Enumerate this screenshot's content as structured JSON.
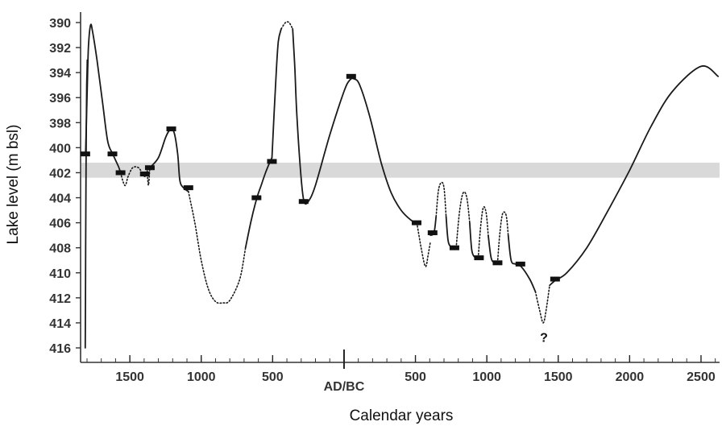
{
  "chart_data": {
    "type": "line",
    "xlabel": "Calendar years",
    "ylabel": "Lake level (m bsl)",
    "x_ticks": [
      {
        "label": "1500",
        "year": -1500
      },
      {
        "label": "1000",
        "year": -1000
      },
      {
        "label": "500",
        "year": -500
      },
      {
        "label": "AD/BC",
        "year": 0
      },
      {
        "label": "500",
        "year": 500
      },
      {
        "label": "1000",
        "year": 1000
      },
      {
        "label": "1500",
        "year": 1500
      },
      {
        "label": "2000",
        "year": 2000
      },
      {
        "label": "2500",
        "year": 2500
      }
    ],
    "xlim": [
      -1845,
      2630
    ],
    "ylim": [
      390,
      416
    ],
    "y_inverted": true,
    "y_ticks": [
      390,
      392,
      394,
      396,
      398,
      400,
      402,
      404,
      406,
      408,
      410,
      412,
      414,
      416
    ],
    "band": {
      "y_from": 401.2,
      "y_to": 402.4,
      "color": "#d9d9d9"
    },
    "line_color": "#1a1a1a",
    "series": [
      {
        "style": "solid",
        "points": [
          [
            -1812,
            416.0
          ],
          [
            -1810,
            410.0
          ],
          [
            -1808,
            404.0
          ],
          [
            -1806,
            400.5
          ],
          [
            -1804,
            397.0
          ],
          [
            -1802,
            395.0
          ],
          [
            -1800,
            394.0
          ],
          [
            -1798,
            393.0
          ]
        ]
      },
      {
        "style": "solid",
        "points": [
          [
            -1810,
            400.5
          ],
          [
            -1800,
            396.0
          ],
          [
            -1790,
            392.0
          ],
          [
            -1775,
            390.2
          ],
          [
            -1760,
            390.8
          ],
          [
            -1730,
            393.0
          ],
          [
            -1690,
            396.5
          ],
          [
            -1655,
            399.5
          ],
          [
            -1620,
            400.5
          ],
          [
            -1580,
            401.5
          ],
          [
            -1565,
            402.0
          ]
        ]
      },
      {
        "style": "dotted",
        "points": [
          [
            -1565,
            402.0
          ],
          [
            -1545,
            402.8
          ],
          [
            -1530,
            403.0
          ],
          [
            -1512,
            402.3
          ],
          [
            -1480,
            401.6
          ],
          [
            -1440,
            401.6
          ],
          [
            -1410,
            402.1
          ]
        ]
      },
      {
        "style": "solid",
        "points": [
          [
            -1410,
            402.1
          ],
          [
            -1395,
            402.3
          ],
          [
            -1378,
            402.0
          ]
        ]
      },
      {
        "style": "dotted",
        "points": [
          [
            -1380,
            401.6
          ],
          [
            -1370,
            403.0
          ],
          [
            -1360,
            401.6
          ]
        ]
      },
      {
        "style": "solid",
        "points": [
          [
            -1360,
            401.6
          ],
          [
            -1300,
            400.8
          ],
          [
            -1250,
            399.2
          ],
          [
            -1220,
            398.6
          ],
          [
            -1190,
            398.8
          ],
          [
            -1165,
            400.5
          ],
          [
            -1150,
            402.6
          ],
          [
            -1125,
            403.2
          ],
          [
            -1090,
            403.5
          ]
        ]
      },
      {
        "style": "dotted",
        "points": [
          [
            -1090,
            403.5
          ],
          [
            -1045,
            406.0
          ],
          [
            -1000,
            409.0
          ],
          [
            -950,
            411.3
          ],
          [
            -900,
            412.3
          ],
          [
            -850,
            412.4
          ],
          [
            -800,
            412.2
          ],
          [
            -730,
            410.5
          ],
          [
            -690,
            408.0
          ]
        ]
      },
      {
        "style": "solid",
        "points": [
          [
            -690,
            408.0
          ],
          [
            -650,
            405.8
          ],
          [
            -610,
            404.0
          ],
          [
            -580,
            403.0
          ],
          [
            -550,
            402.0
          ],
          [
            -525,
            401.3
          ],
          [
            -505,
            400.8
          ]
        ]
      },
      {
        "style": "solid",
        "points": [
          [
            -505,
            400.8
          ],
          [
            -475,
            394.0
          ],
          [
            -460,
            391.5
          ],
          [
            -440,
            390.5
          ]
        ]
      },
      {
        "style": "dotted",
        "points": [
          [
            -440,
            390.5
          ],
          [
            -410,
            390.0
          ],
          [
            -385,
            390.0
          ],
          [
            -360,
            390.5
          ]
        ]
      },
      {
        "style": "solid",
        "points": [
          [
            -360,
            390.5
          ],
          [
            -345,
            393.5
          ],
          [
            -330,
            397.5
          ],
          [
            -300,
            402.5
          ],
          [
            -280,
            404.3
          ],
          [
            -250,
            404.3
          ],
          [
            -200,
            403.0
          ],
          [
            -100,
            399.0
          ],
          [
            0,
            395.5
          ],
          [
            40,
            394.6
          ],
          [
            70,
            394.5
          ],
          [
            110,
            395.0
          ],
          [
            180,
            397.5
          ],
          [
            260,
            401.2
          ],
          [
            330,
            403.6
          ],
          [
            400,
            405.0
          ],
          [
            470,
            405.8
          ],
          [
            510,
            406.0
          ]
        ]
      },
      {
        "style": "dotted",
        "points": [
          [
            510,
            406.0
          ],
          [
            540,
            408.0
          ],
          [
            570,
            409.5
          ],
          [
            590,
            408.5
          ],
          [
            605,
            407.5
          ]
        ]
      },
      {
        "style": "solid",
        "points": [
          [
            605,
            407.0
          ],
          [
            630,
            406.8
          ],
          [
            645,
            405.5
          ]
        ]
      },
      {
        "style": "dotted",
        "points": [
          [
            645,
            405.5
          ],
          [
            660,
            403.5
          ],
          [
            680,
            402.8
          ],
          [
            700,
            403.2
          ],
          [
            715,
            405.5
          ]
        ]
      },
      {
        "style": "solid",
        "points": [
          [
            715,
            405.5
          ],
          [
            730,
            407.5
          ],
          [
            760,
            408.0
          ],
          [
            785,
            408.0
          ]
        ]
      },
      {
        "style": "dotted",
        "points": [
          [
            785,
            408.0
          ],
          [
            810,
            405.0
          ],
          [
            835,
            403.6
          ],
          [
            860,
            404.0
          ],
          [
            880,
            406.0
          ]
        ]
      },
      {
        "style": "solid",
        "points": [
          [
            880,
            406.0
          ],
          [
            895,
            408.2
          ],
          [
            920,
            408.8
          ],
          [
            940,
            408.8
          ]
        ]
      },
      {
        "style": "dotted",
        "points": [
          [
            940,
            408.8
          ],
          [
            955,
            406.5
          ],
          [
            975,
            404.8
          ],
          [
            995,
            405.2
          ],
          [
            1010,
            407.0
          ]
        ]
      },
      {
        "style": "solid",
        "points": [
          [
            1010,
            407.0
          ],
          [
            1030,
            408.8
          ],
          [
            1055,
            409.2
          ],
          [
            1075,
            409.2
          ]
        ]
      },
      {
        "style": "dotted",
        "points": [
          [
            1075,
            409.2
          ],
          [
            1090,
            407.0
          ],
          [
            1110,
            405.3
          ],
          [
            1135,
            405.4
          ],
          [
            1150,
            407.0
          ]
        ]
      },
      {
        "style": "solid",
        "points": [
          [
            1150,
            407.0
          ],
          [
            1170,
            409.0
          ],
          [
            1200,
            409.3
          ],
          [
            1240,
            409.5
          ],
          [
            1300,
            410.5
          ],
          [
            1340,
            411.5
          ]
        ]
      },
      {
        "style": "dotted",
        "points": [
          [
            1340,
            411.5
          ],
          [
            1370,
            413.0
          ],
          [
            1395,
            414.0
          ],
          [
            1415,
            413.0
          ],
          [
            1440,
            411.0
          ]
        ]
      },
      {
        "style": "solid",
        "points": [
          [
            1440,
            411.0
          ],
          [
            1480,
            410.6
          ],
          [
            1560,
            410.0
          ],
          [
            1700,
            408.0
          ],
          [
            1850,
            405.0
          ],
          [
            2000,
            401.8
          ],
          [
            2150,
            398.3
          ],
          [
            2300,
            395.5
          ],
          [
            2500,
            393.5
          ],
          [
            2620,
            394.3
          ]
        ]
      }
    ],
    "data_markers": [
      [
        -1812,
        400.5
      ],
      [
        -1622,
        400.5
      ],
      [
        -1565,
        402.0
      ],
      [
        -1395,
        402.1
      ],
      [
        -1360,
        401.6
      ],
      [
        -1210,
        398.5
      ],
      [
        -1090,
        403.2
      ],
      [
        -613,
        404.0
      ],
      [
        -505,
        401.1
      ],
      [
        -283,
        404.3
      ],
      [
        50,
        394.3
      ],
      [
        508,
        406.0
      ],
      [
        620,
        406.8
      ],
      [
        773,
        408.0
      ],
      [
        945,
        408.8
      ],
      [
        1075,
        409.2
      ],
      [
        1235,
        409.3
      ],
      [
        1478,
        410.5
      ]
    ],
    "annotations": [
      {
        "text": "?",
        "x": 1400,
        "y": 415.0
      }
    ]
  }
}
